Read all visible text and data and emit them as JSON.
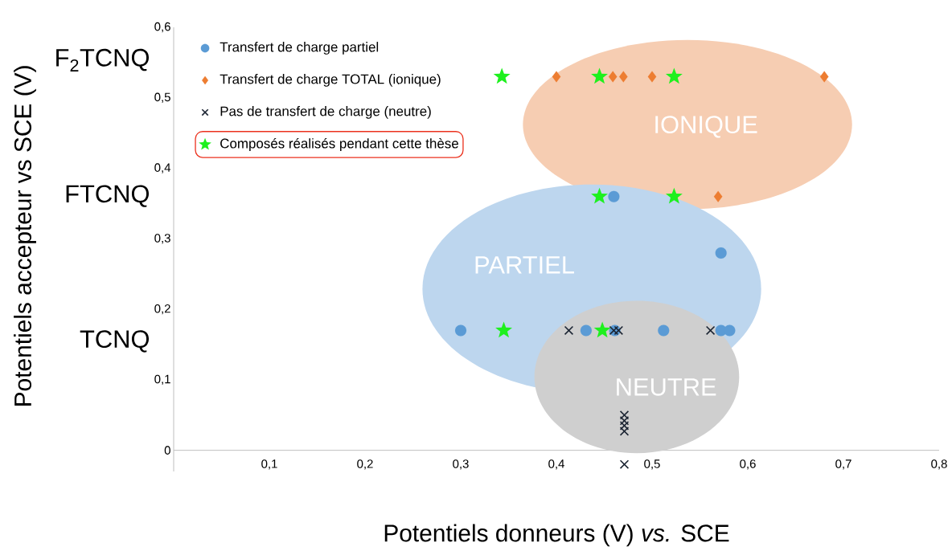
{
  "chart_data": {
    "type": "scatter",
    "xlabel": "Potentiels donneurs (V) *vs.* SCE",
    "ylabel": "Potentiels accepteur vs SCE (V)",
    "xlim": [
      0,
      0.8
    ],
    "ylim": [
      -0.03,
      0.6
    ],
    "xticks": [
      {
        "value": 0.1,
        "label": "0,1"
      },
      {
        "value": 0.2,
        "label": "0,2"
      },
      {
        "value": 0.3,
        "label": "0,3"
      },
      {
        "value": 0.4,
        "label": "0,4"
      },
      {
        "value": 0.5,
        "label": "0,5"
      },
      {
        "value": 0.6,
        "label": "0,6"
      },
      {
        "value": 0.7,
        "label": "0,7"
      },
      {
        "value": 0.8,
        "label": "0,8"
      }
    ],
    "yticks": [
      0,
      {
        "value": 0.1,
        "label": "0,1"
      },
      {
        "value": 0.2,
        "label": "0,2"
      },
      {
        "value": 0.3,
        "label": "0,3"
      },
      {
        "value": 0.4,
        "label": "0,4"
      },
      {
        "value": 0.5,
        "label": "0,5"
      },
      {
        "value": 0.6,
        "label": "0,6"
      }
    ],
    "legend": "top left",
    "series": [
      {
        "name": "Transfert de charge partiel",
        "color": "#5b9bd5",
        "marker": "circle",
        "x": [
          0.3,
          0.431,
          0.461,
          0.512,
          0.572,
          0.581,
          0.572,
          0.46
        ],
        "values": [
          0.17,
          0.17,
          0.17,
          0.17,
          0.17,
          0.17,
          0.28,
          0.36
        ]
      },
      {
        "name": "Transfert de charge TOTAL (ionique)",
        "color": "#ed7d31",
        "marker": "diamond",
        "x": [
          0.4,
          0.459,
          0.47,
          0.5,
          0.68,
          0.569
        ],
        "values": [
          0.53,
          0.53,
          0.53,
          0.53,
          0.53,
          0.36
        ]
      },
      {
        "name": "Pas de transfert de charge (neutre)",
        "color": "#1c2533",
        "marker": "cross",
        "x": [
          0.413,
          0.46,
          0.465,
          0.561,
          0.471,
          0.471,
          0.471,
          0.471,
          0.471
        ],
        "values": [
          0.17,
          0.17,
          0.17,
          0.17,
          0.05,
          0.042,
          0.035,
          0.027,
          -0.02
        ]
      },
      {
        "name": "Composés réalisés pendant cette thèse",
        "color": "#1ef01e",
        "marker": "star",
        "x": [
          0.343,
          0.445,
          0.523,
          0.445,
          0.523,
          0.345,
          0.448
        ],
        "values": [
          0.53,
          0.53,
          0.53,
          0.36,
          0.36,
          0.17,
          0.17
        ]
      }
    ],
    "annotations": [
      "IONIQUE",
      "PARTIEL",
      "NEUTRE",
      "F$_{2}$TCNQ",
      "FTCNQ",
      "TCNQ"
    ]
  }
}
